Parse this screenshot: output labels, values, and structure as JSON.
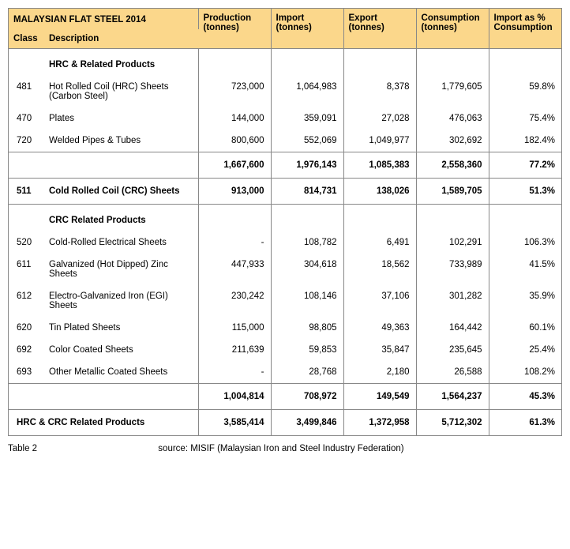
{
  "header": {
    "title": "MALAYSIAN FLAT STEEL  2014",
    "class": "Class",
    "description": "Description",
    "columns": [
      "Production (tonnes)",
      "Import (tonnes)",
      "Export (tonnes)",
      "Consumption (tonnes)",
      "Import as % Consumption"
    ]
  },
  "sections": [
    {
      "heading": "HRC & Related Products",
      "rows": [
        {
          "class": "481",
          "desc": "Hot Rolled Coil (HRC) Sheets (Carbon Steel)",
          "vals": [
            "723,000",
            "1,064,983",
            "8,378",
            "1,779,605",
            "59.8%"
          ]
        },
        {
          "class": "470",
          "desc": "Plates",
          "vals": [
            "144,000",
            "359,091",
            "27,028",
            "476,063",
            "75.4%"
          ]
        },
        {
          "class": "720",
          "desc": "Welded Pipes & Tubes",
          "vals": [
            "800,600",
            "552,069",
            "1,049,977",
            "302,692",
            "182.4%"
          ]
        }
      ],
      "subtotal": [
        "1,667,600",
        "1,976,143",
        "1,085,383",
        "2,558,360",
        "77.2%"
      ]
    },
    {
      "standalone": {
        "class": "511",
        "desc": "Cold Rolled Coil (CRC) Sheets",
        "vals": [
          "913,000",
          "814,731",
          "138,026",
          "1,589,705",
          "51.3%"
        ]
      }
    },
    {
      "heading": "CRC Related Products",
      "rows": [
        {
          "class": "520",
          "desc": "Cold-Rolled Electrical Sheets",
          "vals": [
            "-",
            "108,782",
            "6,491",
            "102,291",
            "106.3%"
          ]
        },
        {
          "class": "611",
          "desc": "Galvanized (Hot Dipped) Zinc Sheets",
          "vals": [
            "447,933",
            "304,618",
            "18,562",
            "733,989",
            "41.5%"
          ]
        },
        {
          "class": "612",
          "desc": "Electro-Galvanized Iron (EGI) Sheets",
          "vals": [
            "230,242",
            "108,146",
            "37,106",
            "301,282",
            "35.9%"
          ]
        },
        {
          "class": "620",
          "desc": "Tin Plated Sheets",
          "vals": [
            "115,000",
            "98,805",
            "49,363",
            "164,442",
            "60.1%"
          ]
        },
        {
          "class": "692",
          "desc": "Color Coated Sheets",
          "vals": [
            "211,639",
            "59,853",
            "35,847",
            "235,645",
            "25.4%"
          ]
        },
        {
          "class": "693",
          "desc": "Other Metallic Coated Sheets",
          "vals": [
            "-",
            "28,768",
            "2,180",
            "26,588",
            "108.2%"
          ]
        }
      ],
      "subtotal": [
        "1,004,814",
        "708,972",
        "149,549",
        "1,564,237",
        "45.3%"
      ]
    }
  ],
  "grand": {
    "label": "HRC & CRC Related Products",
    "vals": [
      "3,585,414",
      "3,499,846",
      "1,372,958",
      "5,712,302",
      "61.3%"
    ]
  },
  "footer": {
    "tableNum": "Table 2",
    "source": "source: MISIF (Malaysian Iron and Steel Industry Federation)"
  }
}
